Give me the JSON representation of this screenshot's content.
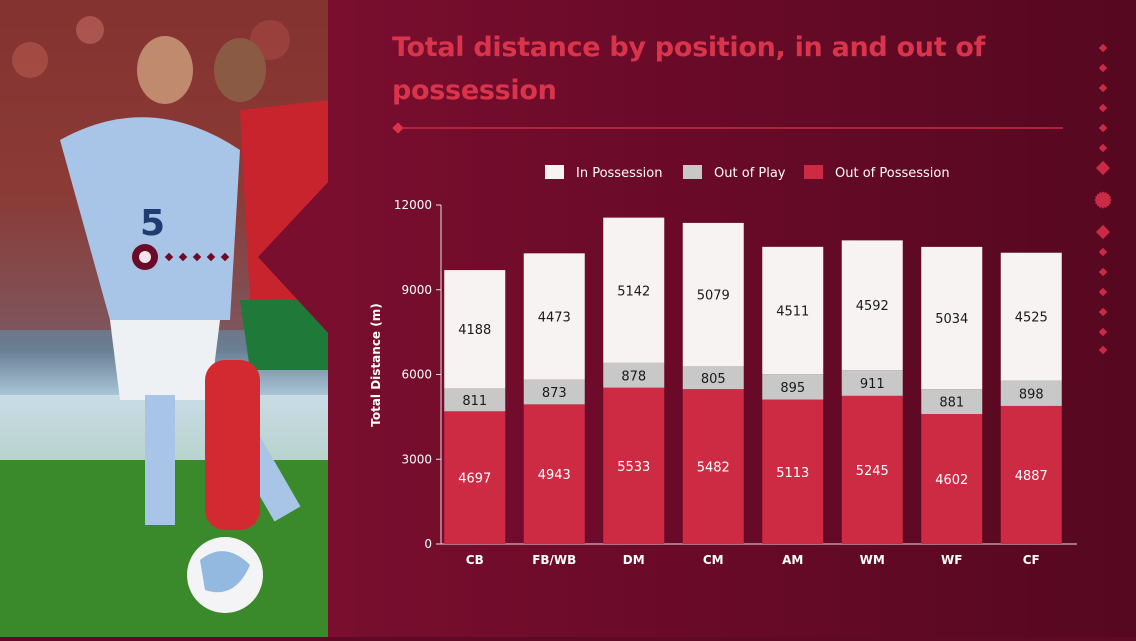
{
  "colors": {
    "in_possession": "#f7f3f2",
    "out_of_play": "#c7c8c7",
    "out_of_possession": "#cd2b44",
    "title": "#d9344c",
    "panel": "#6b0b29"
  },
  "photo": {
    "description_icon": "football-player-photo",
    "jersey_number": "5"
  },
  "chart_data": {
    "type": "bar",
    "stacked": true,
    "title": "Total distance by position, in and out of possession",
    "xlabel": "",
    "ylabel": "Total Distance (m)",
    "ylim": [
      0,
      12000
    ],
    "yticks": [
      0,
      3000,
      6000,
      9000,
      12000
    ],
    "grid": false,
    "legend_position": "top",
    "categories": [
      "CB",
      "FB/WB",
      "DM",
      "CM",
      "AM",
      "WM",
      "WF",
      "CF"
    ],
    "series": [
      {
        "name": "Out of Possession",
        "color": "#cd2b44",
        "values": [
          4697,
          4943,
          5533,
          5482,
          5113,
          5245,
          4602,
          4887
        ]
      },
      {
        "name": "Out of Play",
        "color": "#c7c8c7",
        "values": [
          811,
          873,
          878,
          805,
          895,
          911,
          881,
          898
        ]
      },
      {
        "name": "In Possession",
        "color": "#f7f3f2",
        "values": [
          4188,
          4473,
          5142,
          5079,
          4511,
          4592,
          5034,
          4525
        ]
      }
    ],
    "legend_order": [
      "In Possession",
      "Out of Play",
      "Out of Possession"
    ]
  }
}
